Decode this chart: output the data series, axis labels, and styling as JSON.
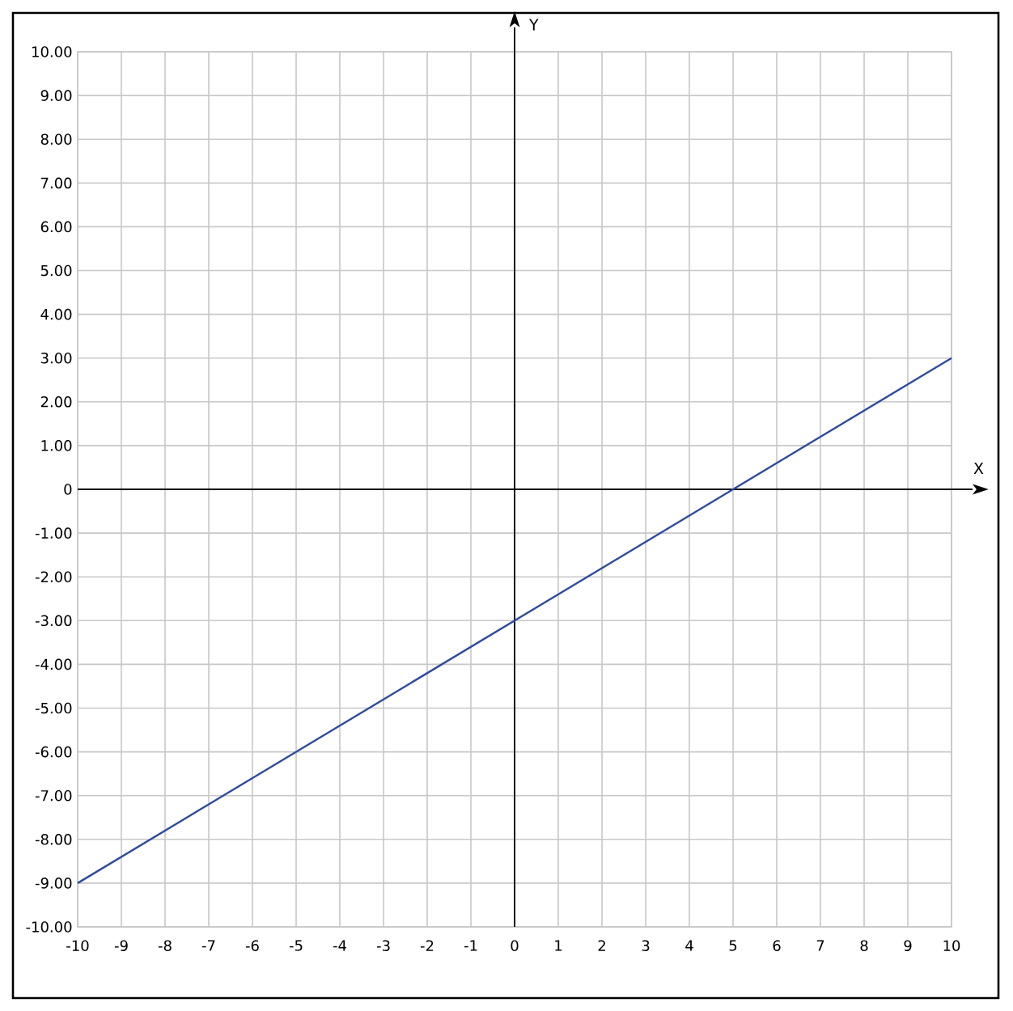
{
  "chart_data": {
    "type": "line",
    "xlabel": "X",
    "ylabel": "Y",
    "x": [
      -10,
      10
    ],
    "values": [
      -9,
      3
    ],
    "color": "#2e4b9e",
    "xlim": [
      -10,
      10
    ],
    "ylim": [
      -10,
      10
    ],
    "xticks": [
      -10,
      -9,
      -8,
      -7,
      -6,
      -5,
      -4,
      -3,
      -2,
      -1,
      0,
      1,
      2,
      3,
      4,
      5,
      6,
      7,
      8,
      9,
      10
    ],
    "yticks": [
      {
        "value": -10,
        "label": "-10.00"
      },
      {
        "value": -9,
        "label": "-9.00"
      },
      {
        "value": -8,
        "label": "-8.00"
      },
      {
        "value": -7,
        "label": "-7.00"
      },
      {
        "value": -6,
        "label": "-6.00"
      },
      {
        "value": -5,
        "label": "-5.00"
      },
      {
        "value": -4,
        "label": "-4.00"
      },
      {
        "value": -3,
        "label": "-3.00"
      },
      {
        "value": -2,
        "label": "-2.00"
      },
      {
        "value": -1,
        "label": "-1.00"
      },
      0,
      {
        "value": 1,
        "label": "1.00"
      },
      {
        "value": 2,
        "label": "2.00"
      },
      {
        "value": 3,
        "label": "3.00"
      },
      {
        "value": 4,
        "label": "4.00"
      },
      {
        "value": 5,
        "label": "5.00"
      },
      {
        "value": 6,
        "label": "6.00"
      },
      {
        "value": 7,
        "label": "7.00"
      },
      {
        "value": 8,
        "label": "8.00"
      },
      {
        "value": 9,
        "label": "9.00"
      },
      {
        "value": 10,
        "label": "10.00"
      }
    ],
    "grid": true
  }
}
